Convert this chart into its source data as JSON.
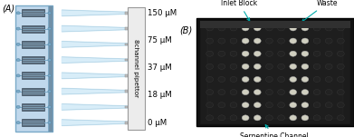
{
  "panel_A_label": "(A)",
  "panel_B_label": "(B)",
  "concentrations": [
    "0 μM",
    "18 μM",
    "37 μM",
    "75 μM",
    "150 μM"
  ],
  "pipettor_label": "8channel pipettor",
  "n_channels": 8,
  "device_color": "#c0d8ec",
  "device_border": "#7aaac8",
  "device_dark_strip": "#7090a8",
  "chip_face": "#5a6a7a",
  "chip_edge": "#3a4a5a",
  "chip_line": "#8ab0c8",
  "inlet_dot": "#7aaac8",
  "tip_color": "#d4ecf8",
  "tip_edge": "#a8cce0",
  "pipettor_box_color": "#ececec",
  "pipettor_box_edge": "#999999",
  "annotation_color": "#00aaaa",
  "inlet_block_label": "Inlet Block",
  "waste_label": "Waste",
  "serpentine_label": "Serpentine Channel",
  "label_fontsize": 7.0,
  "small_fontsize": 5.5,
  "conc_fontsize": 6.2,
  "pip_fontsize": 5.2,
  "photo_bg": "#1c1c1c",
  "photo_frame": "#2a2a2a",
  "well_dark": "#222222",
  "well_bright": "#d0cfc0",
  "well_edge": "#404040"
}
